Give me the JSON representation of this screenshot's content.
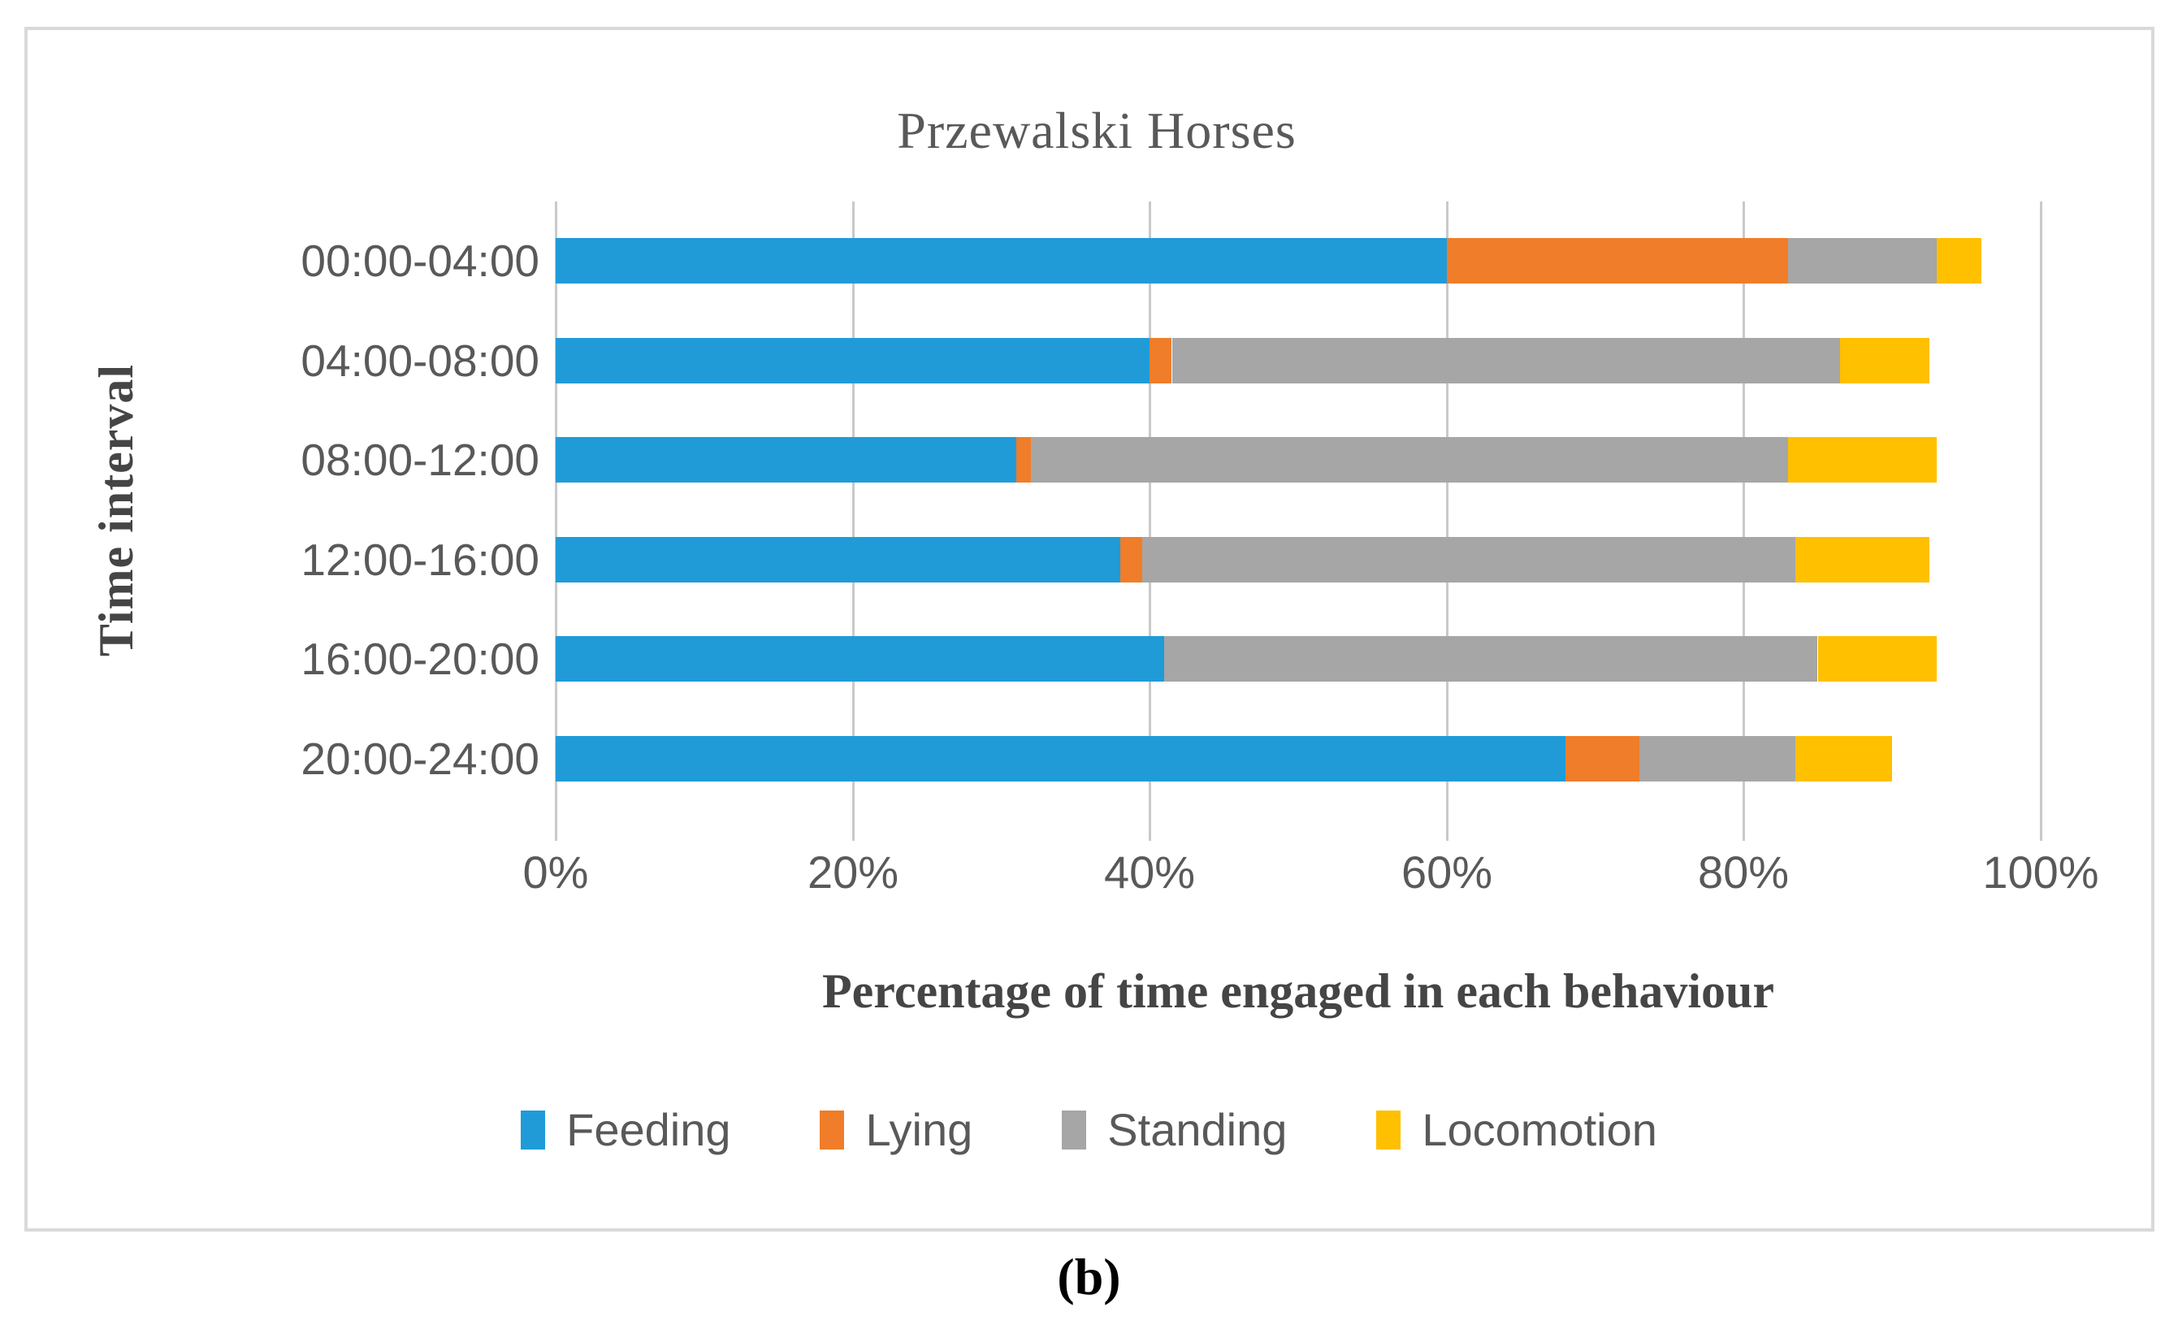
{
  "figure": {
    "caption": "(b)"
  },
  "colors": {
    "gridline": "#c9c9c9",
    "panel_border": "#d9d9d9",
    "tick_text": "#595959",
    "category_text": "#595959",
    "title_text": "#595959",
    "axis_title_text": "#454545",
    "caption_text": "#000000"
  },
  "chart_data": {
    "type": "bar",
    "subtype": "horizontal-stacked",
    "title": "Przewalski Horses",
    "xlabel": "Percentage of time engaged in each behaviour",
    "ylabel": "Time interval",
    "categories": [
      "00:00-04:00",
      "04:00-08:00",
      "08:00-12:00",
      "12:00-16:00",
      "16:00-20:00",
      "20:00-24:00"
    ],
    "series": [
      {
        "name": "Feeding",
        "color": "#209bd8",
        "values": [
          60,
          40,
          31,
          38,
          41,
          68
        ]
      },
      {
        "name": "Lying",
        "color": "#f07d29",
        "values": [
          23,
          1.5,
          1,
          1.5,
          0,
          5
        ]
      },
      {
        "name": "Standing",
        "color": "#a6a6a6",
        "values": [
          10,
          45,
          51,
          44,
          44,
          10.5
        ]
      },
      {
        "name": "Locomotion",
        "color": "#ffc000",
        "values": [
          3,
          6,
          10,
          9,
          8,
          6.5
        ]
      }
    ],
    "x_ticks": [
      "0%",
      "20%",
      "40%",
      "60%",
      "80%",
      "100%"
    ],
    "x_tick_values": [
      0,
      20,
      40,
      60,
      80,
      100
    ],
    "xlim": [
      0,
      100
    ],
    "grid": "vertical",
    "legend_position": "bottom",
    "bar_unit": "percent of time"
  }
}
